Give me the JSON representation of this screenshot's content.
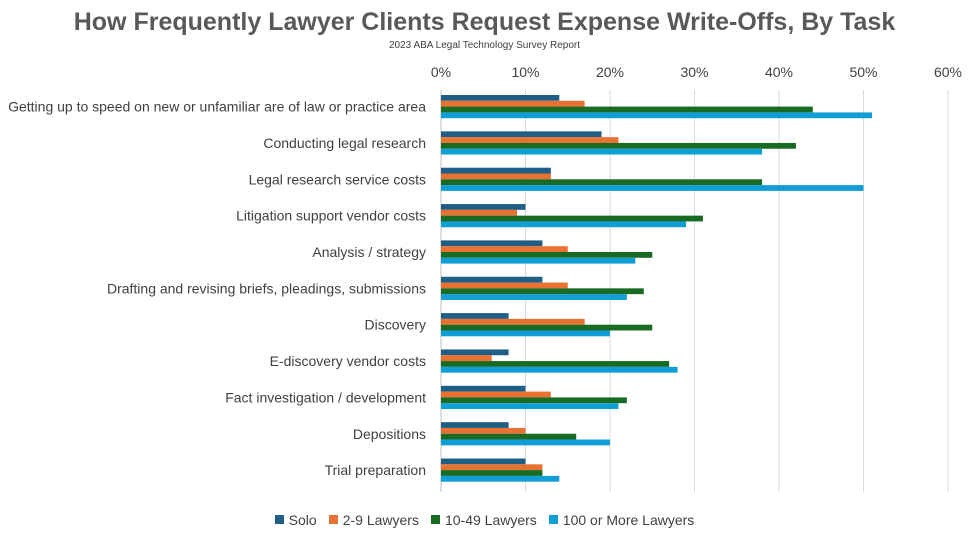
{
  "chart_data": {
    "type": "bar",
    "orientation": "horizontal",
    "title": "How Frequently Lawyer Clients Request Expense Write-Offs, By Task",
    "subtitle": "2023 ABA Legal Technology Survey Report",
    "xlim": [
      0,
      60
    ],
    "x_ticks": [
      0,
      10,
      20,
      30,
      40,
      50,
      60
    ],
    "x_tick_labels": [
      "0%",
      "10%",
      "20%",
      "30%",
      "40%",
      "50%",
      "60%"
    ],
    "x_axis_position": "top",
    "grid": true,
    "legend_position": "bottom",
    "categories": [
      "Getting up to speed on new or unfamiliar are of law or practice area",
      "Conducting legal research",
      "Legal research service costs",
      "Litigation support vendor costs",
      "Analysis / strategy",
      "Drafting and revising briefs, pleadings, submissions",
      "Discovery",
      "E-discovery vendor costs",
      "Fact investigation / development",
      "Depositions",
      "Trial preparation"
    ],
    "series": [
      {
        "name": "Solo",
        "color": "#1f5f86",
        "values": [
          14,
          19,
          13,
          10,
          12,
          12,
          8,
          8,
          10,
          8,
          10
        ]
      },
      {
        "name": "2-9 Lawyers",
        "color": "#e97132",
        "values": [
          17,
          21,
          13,
          9,
          15,
          15,
          17,
          6,
          13,
          10,
          12
        ]
      },
      {
        "name": "10-49 Lawyers",
        "color": "#196b24",
        "values": [
          44,
          42,
          38,
          31,
          25,
          24,
          25,
          27,
          22,
          16,
          12
        ]
      },
      {
        "name": "100 or More Lawyers",
        "color": "#0f9ed5",
        "values": [
          51,
          38,
          50,
          29,
          23,
          22,
          20,
          28,
          21,
          20,
          14
        ]
      }
    ]
  }
}
